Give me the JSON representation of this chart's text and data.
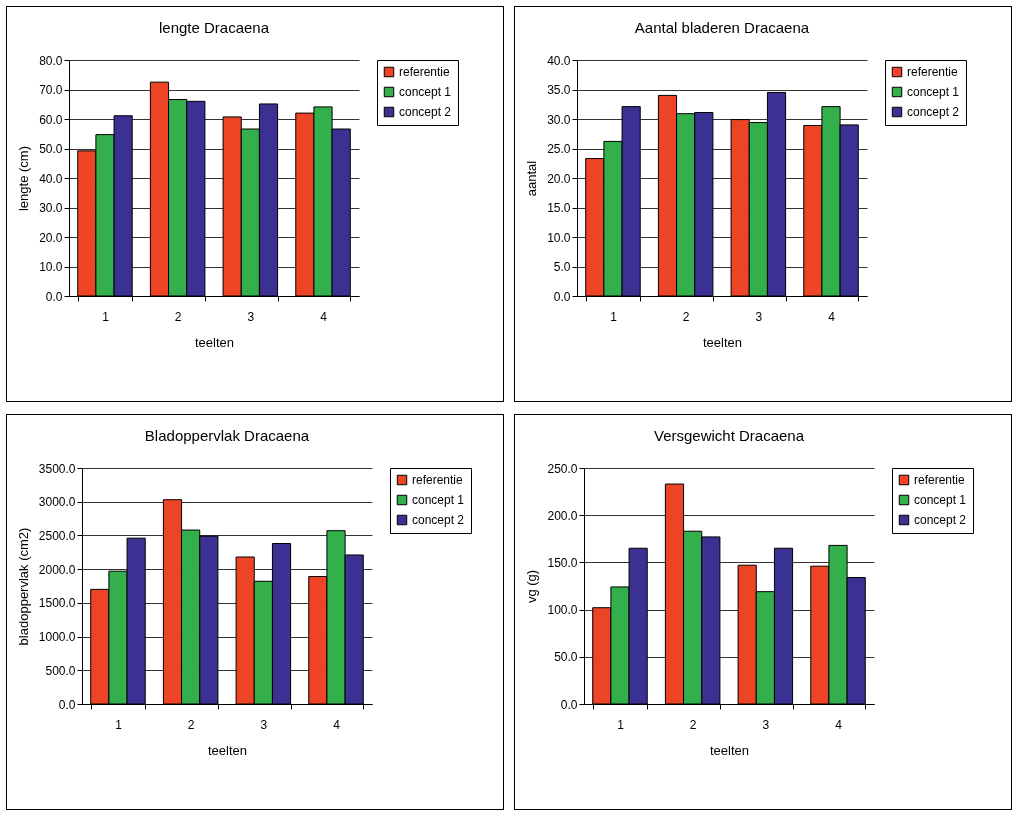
{
  "chart_data": [
    {
      "type": "bar",
      "title": "lengte Dracaena",
      "xlabel": "teelten",
      "ylabel": "lengte (cm)",
      "categories": [
        "1",
        "2",
        "3",
        "4"
      ],
      "series": [
        {
          "name": "referentie",
          "color": "#ee4426",
          "values": [
            49.2,
            72.5,
            60.7,
            62.0
          ]
        },
        {
          "name": "concept 1",
          "color": "#33b04c",
          "values": [
            54.7,
            66.6,
            56.6,
            64.1
          ]
        },
        {
          "name": "concept 2",
          "color": "#3a3192",
          "values": [
            61.1,
            66.0,
            65.1,
            56.6
          ]
        }
      ],
      "ylim": [
        0,
        80
      ],
      "yticks": [
        {
          "value": 0,
          "label": "0.0"
        },
        {
          "value": 10,
          "label": "10.0"
        },
        {
          "value": 20,
          "label": "20.0"
        },
        {
          "value": 30,
          "label": "30.0"
        },
        {
          "value": 40,
          "label": "40.0"
        },
        {
          "value": 50,
          "label": "50.0"
        },
        {
          "value": 60,
          "label": "60.0"
        },
        {
          "value": 70,
          "label": "70.0"
        },
        {
          "value": 80,
          "label": "80.0"
        }
      ],
      "grid": "y",
      "legend": "right"
    },
    {
      "type": "bar",
      "title": "Aantal bladeren Dracaena",
      "xlabel": "teelten",
      "ylabel": "aantal",
      "categories": [
        "1",
        "2",
        "3",
        "4"
      ],
      "series": [
        {
          "name": "referentie",
          "color": "#ee4426",
          "values": [
            23.3,
            34.0,
            29.9,
            28.9
          ]
        },
        {
          "name": "concept 1",
          "color": "#33b04c",
          "values": [
            26.2,
            30.9,
            29.4,
            32.1
          ]
        },
        {
          "name": "concept 2",
          "color": "#3a3192",
          "values": [
            32.1,
            31.1,
            34.5,
            29.0
          ]
        }
      ],
      "ylim": [
        0,
        40
      ],
      "yticks": [
        {
          "value": 0,
          "label": "0.0"
        },
        {
          "value": 5,
          "label": "5.0"
        },
        {
          "value": 10,
          "label": "10.0"
        },
        {
          "value": 15,
          "label": "15.0"
        },
        {
          "value": 20,
          "label": "20.0"
        },
        {
          "value": 25,
          "label": "25.0"
        },
        {
          "value": 30,
          "label": "30.0"
        },
        {
          "value": 35,
          "label": "35.0"
        },
        {
          "value": 40,
          "label": "40.0"
        }
      ],
      "grid": "y",
      "legend": "right"
    },
    {
      "type": "bar",
      "title": "Bladoppervlak Dracaena",
      "xlabel": "teelten",
      "ylabel": "bladoppervlak (cm2)",
      "categories": [
        "1",
        "2",
        "3",
        "4"
      ],
      "series": [
        {
          "name": "referentie",
          "color": "#ee4426",
          "values": [
            1700,
            3030,
            2180,
            1890
          ]
        },
        {
          "name": "concept 1",
          "color": "#33b04c",
          "values": [
            1970,
            2580,
            1820,
            2570
          ]
        },
        {
          "name": "concept 2",
          "color": "#3a3192",
          "values": [
            2460,
            2490,
            2380,
            2210
          ]
        }
      ],
      "ylim": [
        0,
        3500
      ],
      "yticks": [
        {
          "value": 0,
          "label": "0.0"
        },
        {
          "value": 500,
          "label": "500.0"
        },
        {
          "value": 1000,
          "label": "1000.0"
        },
        {
          "value": 1500,
          "label": "1500.0"
        },
        {
          "value": 2000,
          "label": "2000.0"
        },
        {
          "value": 2500,
          "label": "2500.0"
        },
        {
          "value": 3000,
          "label": "3000.0"
        },
        {
          "value": 3500,
          "label": "3500.0"
        }
      ],
      "grid": "y",
      "legend": "right"
    },
    {
      "type": "bar",
      "title": "Versgewicht Dracaena",
      "xlabel": "teelten",
      "ylabel": "vg (g)",
      "categories": [
        "1",
        "2",
        "3",
        "4"
      ],
      "series": [
        {
          "name": "referentie",
          "color": "#ee4426",
          "values": [
            102,
            233,
            147,
            146
          ]
        },
        {
          "name": "concept 1",
          "color": "#33b04c",
          "values": [
            124,
            183,
            119,
            168
          ]
        },
        {
          "name": "concept 2",
          "color": "#3a3192",
          "values": [
            165,
            177,
            165,
            134
          ]
        }
      ],
      "ylim": [
        0,
        250
      ],
      "yticks": [
        {
          "value": 0,
          "label": "0.0"
        },
        {
          "value": 50,
          "label": "50.0"
        },
        {
          "value": 100,
          "label": "100.0"
        },
        {
          "value": 150,
          "label": "150.0"
        },
        {
          "value": 200,
          "label": "200.0"
        },
        {
          "value": 250,
          "label": "250.0"
        }
      ],
      "grid": "y",
      "legend": "right"
    }
  ]
}
